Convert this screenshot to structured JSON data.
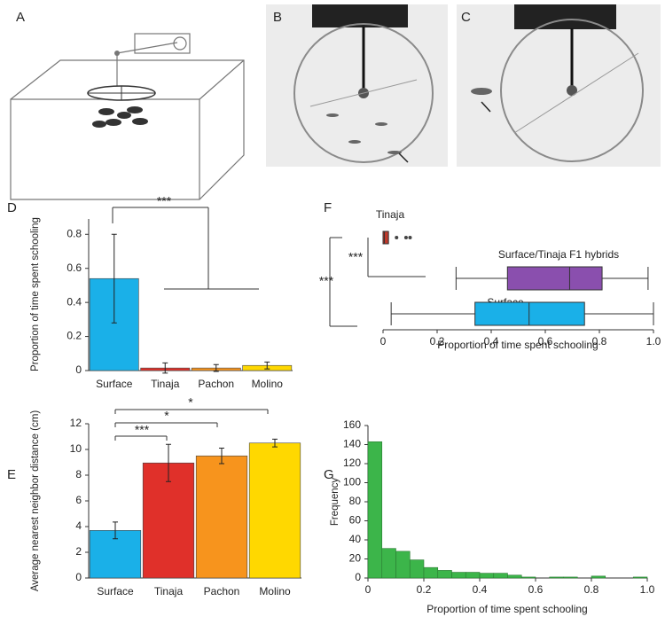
{
  "illustration_labels": [
    "A",
    "B",
    "C"
  ],
  "chart_data": [
    {
      "type": "bar",
      "panel_label": "D",
      "ylabel": "Proportion of time spent schooling",
      "categories": [
        "Surface",
        "Tinaja",
        "Pachon",
        "Molino"
      ],
      "values": [
        0.54,
        0.015,
        0.015,
        0.03
      ],
      "errors": [
        0.26,
        0.03,
        0.02,
        0.02
      ],
      "colors": [
        "#1ab0e8",
        "#e0302a",
        "#f7941d",
        "#ffd800"
      ],
      "ylim": [
        0,
        0.89
      ],
      "yticks": [
        0,
        0.2,
        0.4,
        0.6,
        0.8
      ],
      "annotations": [
        "***"
      ]
    },
    {
      "type": "bar",
      "panel_label": "E",
      "ylabel": "Average nearest neighbor distance (cm)",
      "categories": [
        "Surface",
        "Tinaja",
        "Pachon",
        "Molino"
      ],
      "values": [
        3.7,
        8.95,
        9.5,
        10.5
      ],
      "errors": [
        0.65,
        1.45,
        0.6,
        0.3
      ],
      "colors": [
        "#1ab0e8",
        "#e0302a",
        "#f7941d",
        "#ffd800"
      ],
      "ylim": [
        0,
        12
      ],
      "yticks": [
        0,
        2,
        4,
        6,
        8,
        10,
        12
      ],
      "annotations": [
        "***",
        "*",
        "*"
      ]
    },
    {
      "type": "box",
      "panel_label": "F",
      "xlabel": "Proportion of time spent schooling",
      "series": [
        {
          "name": "Tinaja",
          "color": "#c0392b",
          "min": 0,
          "q1": 0,
          "median": 0.005,
          "q3": 0.02,
          "max": 0.02,
          "outliers": [
            0.05,
            0.085,
            0.1
          ]
        },
        {
          "name": "Surface/Tinaja F1 hybrids",
          "color": "#8a4fae",
          "min": 0.27,
          "q1": 0.46,
          "median": 0.69,
          "q3": 0.81,
          "max": 0.98,
          "outliers": []
        },
        {
          "name": "Surface",
          "color": "#1ab0e8",
          "min": 0.03,
          "q1": 0.34,
          "median": 0.54,
          "q3": 0.745,
          "max": 1.0,
          "outliers": []
        }
      ],
      "xlim": [
        0,
        1
      ],
      "xticks": [
        0,
        0.2,
        0.4,
        0.6,
        0.8,
        {
          "value": 1,
          "label": "1.0"
        }
      ],
      "annotations": [
        "***",
        "***"
      ]
    },
    {
      "type": "histogram",
      "panel_label": "G",
      "xlabel": "Proportion of time spent schooling",
      "ylabel": "Frequency",
      "bins": [
        0,
        0.05,
        0.1,
        0.15,
        0.2,
        0.25,
        0.3,
        0.35,
        0.4,
        0.45,
        0.5,
        0.55,
        0.6,
        0.65,
        0.7,
        0.75,
        0.8,
        0.85,
        0.9,
        0.95,
        1
      ],
      "values": [
        143,
        31,
        28,
        19,
        11,
        8,
        6,
        6,
        5,
        5,
        3,
        1,
        0,
        1,
        1,
        0,
        2,
        0,
        0,
        1
      ],
      "color": "#3cb54a",
      "xlim": [
        0,
        1
      ],
      "xticks": [
        0,
        0.2,
        0.4,
        0.6,
        0.8,
        {
          "value": 1,
          "label": "1.0"
        }
      ],
      "ylim": [
        0,
        160
      ],
      "yticks": [
        0,
        20,
        40,
        60,
        80,
        100,
        120,
        140,
        160
      ]
    }
  ]
}
